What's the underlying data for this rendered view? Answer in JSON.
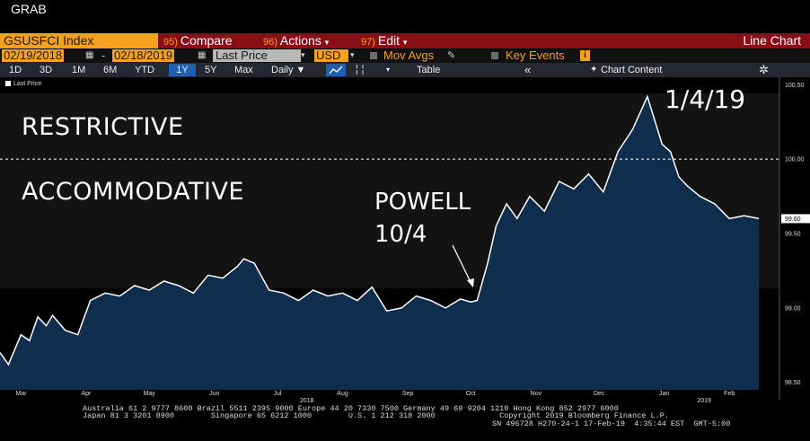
{
  "window": {
    "title": "GRAB"
  },
  "command_bar": {
    "ticker": "GSUSFCI Index",
    "compare": {
      "num": "95)",
      "label": "Compare"
    },
    "actions": {
      "num": "96)",
      "label": "Actions"
    },
    "edit": {
      "num": "97)",
      "label": "Edit"
    },
    "chart_type": "Line Chart"
  },
  "settings_bar": {
    "start_date": "02/19/2018",
    "end_date": "02/18/2019",
    "field": "Last Price",
    "currency": "USD",
    "mov_avgs": "Mov Avgs",
    "key_events": "Key Events"
  },
  "range_bar": {
    "ranges": [
      "1D",
      "3D",
      "1M",
      "6M",
      "YTD",
      "1Y",
      "5Y",
      "Max"
    ],
    "active": "1Y",
    "frequency": "Daily",
    "table": "Table",
    "chart_content": "Chart Content"
  },
  "legend": {
    "label": "Last Price"
  },
  "annotations": {
    "restrictive": "RESTRICTIVE",
    "accommodative": "ACCOMMODATIVE",
    "powell_line1": "POWELL",
    "powell_line2": "10/4",
    "peak_date": "1/4/19"
  },
  "last_value_label": "99.60",
  "footer": {
    "line1": "Australia 61 2 9777 8600 Brazil 5511 2395 9000 Europe 44 20 7330 7500 Germany 49 69 9204 1210 Hong Kong 852 2977 6000",
    "line2": "Japan 81 3 3201 8900        Singapore 65 6212 1000        U.S. 1 212 318 2000              Copyright 2019 Bloomberg Finance L.P.",
    "line3": "SN 496728 H270-24-1 17-Feb-19  4:35:44 EST  GMT-5:00"
  },
  "colors": {
    "accent_orange": "#f5a11f",
    "command_red": "#8a0e15",
    "area_fill": "#0f2d4d",
    "line": "#ffffff"
  },
  "chart_data": {
    "type": "area",
    "series": [
      {
        "name": "Last Price",
        "x": [
          "2018-02-19",
          "2018-02-23",
          "2018-03-01",
          "2018-03-05",
          "2018-03-09",
          "2018-03-13",
          "2018-03-16",
          "2018-03-22",
          "2018-03-28",
          "2018-04-03",
          "2018-04-10",
          "2018-04-17",
          "2018-04-24",
          "2018-05-01",
          "2018-05-08",
          "2018-05-15",
          "2018-05-22",
          "2018-05-29",
          "2018-06-05",
          "2018-06-12",
          "2018-06-15",
          "2018-06-20",
          "2018-06-27",
          "2018-07-04",
          "2018-07-11",
          "2018-07-18",
          "2018-07-25",
          "2018-08-01",
          "2018-08-08",
          "2018-08-15",
          "2018-08-22",
          "2018-08-29",
          "2018-09-05",
          "2018-09-12",
          "2018-09-19",
          "2018-09-26",
          "2018-10-01",
          "2018-10-04",
          "2018-10-09",
          "2018-10-13",
          "2018-10-18",
          "2018-10-23",
          "2018-10-29",
          "2018-11-05",
          "2018-11-12",
          "2018-11-19",
          "2018-11-26",
          "2018-12-03",
          "2018-12-10",
          "2018-12-17",
          "2018-12-24",
          "2018-12-31",
          "2019-01-04",
          "2019-01-08",
          "2019-01-12",
          "2019-01-18",
          "2019-01-25",
          "2019-02-01",
          "2019-02-08",
          "2019-02-15"
        ],
        "y": [
          98.7,
          98.62,
          98.82,
          98.78,
          98.94,
          98.88,
          98.95,
          98.85,
          98.82,
          99.05,
          99.1,
          99.08,
          99.15,
          99.12,
          99.18,
          99.15,
          99.1,
          99.22,
          99.2,
          99.28,
          99.33,
          99.3,
          99.12,
          99.1,
          99.05,
          99.12,
          99.08,
          99.1,
          99.05,
          99.14,
          98.98,
          99.0,
          99.08,
          99.05,
          99.0,
          99.06,
          99.04,
          99.05,
          99.3,
          99.55,
          99.7,
          99.6,
          99.75,
          99.65,
          99.85,
          99.8,
          99.9,
          99.78,
          100.05,
          100.2,
          100.42,
          100.1,
          100.05,
          99.88,
          99.82,
          99.75,
          99.7,
          99.6,
          99.62,
          99.6
        ]
      }
    ],
    "xlim": [
      "2018-02-19",
      "2019-02-18"
    ],
    "ylim": [
      98.45,
      100.55
    ],
    "yticks": [
      98.5,
      99.0,
      99.5,
      100.0,
      100.5
    ],
    "ytick_labels": [
      "98.50",
      "99.00",
      "99.50",
      "100.00",
      "100.50"
    ],
    "xtick_labels": [
      "Mar",
      "Apr",
      "May",
      "Jun",
      "Jul",
      "Aug",
      "Sep",
      "Oct",
      "Nov",
      "Dec",
      "Jan",
      "Feb"
    ],
    "xtick_dates": [
      "2018-03-01",
      "2018-04-01",
      "2018-05-01",
      "2018-06-01",
      "2018-07-01",
      "2018-08-01",
      "2018-09-01",
      "2018-10-01",
      "2018-11-01",
      "2018-12-01",
      "2019-01-01",
      "2019-02-01"
    ],
    "year_labels": [
      {
        "label": "2018",
        "date": "2018-07-15"
      },
      {
        "label": "2019",
        "date": "2019-01-20"
      }
    ],
    "reference_line": {
      "value": 100.0,
      "style": "dashed"
    },
    "grid": false,
    "legend": "top-left"
  }
}
